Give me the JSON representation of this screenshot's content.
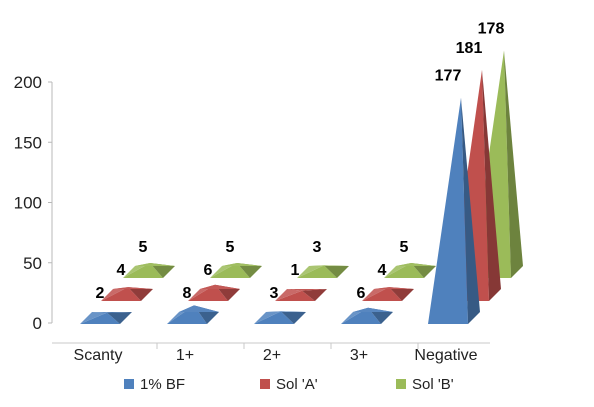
{
  "chart_data": {
    "type": "bar",
    "variant": "3d-pyramid",
    "categories": [
      "Scanty",
      "1+",
      "2+",
      "3+",
      "Negative"
    ],
    "series": [
      {
        "name": "1% BF",
        "values": [
          2,
          8,
          3,
          6,
          177
        ],
        "color": "#4F81BD"
      },
      {
        "name": "Sol 'A'",
        "values": [
          4,
          6,
          1,
          4,
          181
        ],
        "color": "#C0504D"
      },
      {
        "name": "Sol 'B'",
        "values": [
          5,
          5,
          3,
          5,
          178
        ],
        "color": "#9BBB59"
      }
    ],
    "y_ticks": [
      "0",
      "50",
      "100",
      "150",
      "200"
    ],
    "ylim": [
      0,
      200
    ],
    "title": "",
    "xlabel": "",
    "ylabel": "",
    "grid": false,
    "legend_position": "bottom"
  }
}
